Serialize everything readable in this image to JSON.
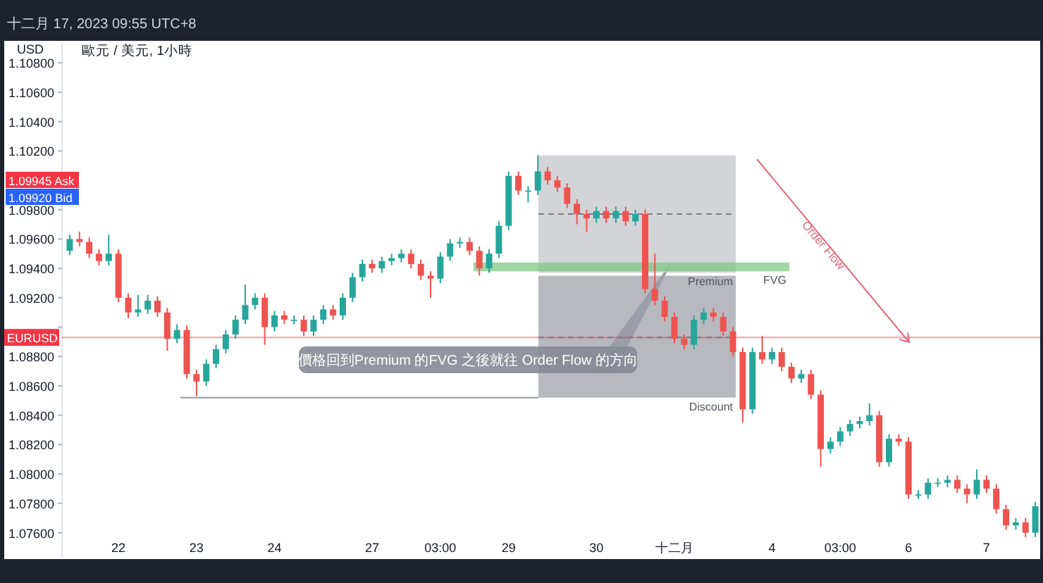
{
  "chart_data": {
    "type": "candlestick",
    "title": "歐元 / 美元, 1小時",
    "subtitle": "十二月 17, 2023 09:55 UTC+8",
    "ylabel": "USD",
    "categories": [
      null,
      null,
      null,
      null,
      null,
      "22",
      null,
      null,
      null,
      null,
      null,
      null,
      null,
      "23",
      null,
      null,
      null,
      null,
      null,
      null,
      null,
      "24",
      null,
      null,
      null,
      null,
      null,
      null,
      null,
      null,
      null,
      "27",
      null,
      null,
      null,
      null,
      null,
      null,
      "03:00",
      null,
      null,
      null,
      null,
      null,
      null,
      "29",
      null,
      null,
      null,
      null,
      null,
      null,
      null,
      null,
      "30",
      null,
      null,
      null,
      null,
      null,
      null,
      null,
      "十二月",
      null,
      null,
      null,
      null,
      null,
      null,
      null,
      null,
      null,
      "4",
      null,
      null,
      null,
      null,
      null,
      null,
      "03:00",
      null,
      null,
      null,
      null,
      null,
      null,
      "6",
      null,
      null,
      null,
      null,
      null,
      null,
      null,
      "7",
      null,
      null,
      null,
      null,
      null
    ],
    "ohlc": [
      [
        1.0952,
        1.0963,
        1.0949,
        1.096
      ],
      [
        1.096,
        1.0965,
        1.0955,
        1.0958
      ],
      [
        1.0958,
        1.0961,
        1.0947,
        1.095
      ],
      [
        1.095,
        1.0953,
        1.0942,
        1.0945
      ],
      [
        1.0945,
        1.0963,
        1.0942,
        1.095
      ],
      [
        1.095,
        1.0953,
        1.0917,
        1.092
      ],
      [
        1.092,
        1.0923,
        1.0906,
        1.091
      ],
      [
        1.091,
        1.0922,
        1.0907,
        1.0912
      ],
      [
        1.0912,
        1.0922,
        1.0909,
        1.0918
      ],
      [
        1.0918,
        1.0921,
        1.0907,
        1.091
      ],
      [
        1.091,
        1.0913,
        1.0884,
        1.0892
      ],
      [
        1.0892,
        1.0902,
        1.0889,
        1.0898
      ],
      [
        1.0898,
        1.0901,
        1.0865,
        1.0868
      ],
      [
        1.0868,
        1.0871,
        1.0853,
        1.0863
      ],
      [
        1.0863,
        1.0878,
        1.086,
        1.0875
      ],
      [
        1.0875,
        1.0888,
        1.0872,
        1.0885
      ],
      [
        1.0885,
        1.0898,
        1.0882,
        1.0895
      ],
      [
        1.0895,
        1.0908,
        1.0892,
        1.0905
      ],
      [
        1.0905,
        1.0929,
        1.0902,
        1.0915
      ],
      [
        1.0915,
        1.0923,
        1.0912,
        1.092
      ],
      [
        1.092,
        1.0923,
        1.0888,
        1.09
      ],
      [
        1.09,
        1.0911,
        1.0897,
        1.0908
      ],
      [
        1.0908,
        1.0911,
        1.0902,
        1.0905
      ],
      [
        1.0905,
        1.0908,
        1.0902,
        1.0905
      ],
      [
        1.0905,
        1.0908,
        1.0894,
        1.0897
      ],
      [
        1.0897,
        1.0908,
        1.0894,
        1.0905
      ],
      [
        1.0905,
        1.0915,
        1.0902,
        1.0912
      ],
      [
        1.0912,
        1.0915,
        1.0905,
        1.0908
      ],
      [
        1.0908,
        1.0923,
        1.0905,
        1.092
      ],
      [
        1.092,
        1.0937,
        1.0917,
        1.0934
      ],
      [
        1.0934,
        1.0946,
        1.0931,
        1.0943
      ],
      [
        1.0943,
        1.0946,
        1.0937,
        1.094
      ],
      [
        1.094,
        1.0948,
        1.0937,
        1.0945
      ],
      [
        1.0945,
        1.095,
        1.0942,
        1.0947
      ],
      [
        1.0947,
        1.0953,
        1.0944,
        1.095
      ],
      [
        1.095,
        1.0953,
        1.094,
        1.0943
      ],
      [
        1.0943,
        1.0946,
        1.0932,
        1.0935
      ],
      [
        1.0935,
        1.0938,
        1.092,
        1.0933
      ],
      [
        1.0933,
        1.0951,
        1.093,
        1.0948
      ],
      [
        1.0948,
        1.096,
        1.0945,
        1.0957
      ],
      [
        1.0957,
        1.0961,
        1.0954,
        1.0958
      ],
      [
        1.0958,
        1.0961,
        1.0949,
        1.0952
      ],
      [
        1.0952,
        1.0955,
        1.0935,
        1.094
      ],
      [
        1.094,
        1.0953,
        1.0937,
        1.095
      ],
      [
        1.095,
        1.0972,
        1.0947,
        1.0969
      ],
      [
        1.0969,
        1.1006,
        1.0966,
        1.1003
      ],
      [
        1.1003,
        1.1006,
        1.099,
        1.0993
      ],
      [
        1.0993,
        1.0996,
        1.0985,
        1.0993
      ],
      [
        1.0993,
        1.1017,
        1.099,
        1.1006
      ],
      [
        1.1006,
        1.1009,
        1.0997,
        1.1
      ],
      [
        1.1,
        1.1003,
        1.0992,
        1.0995
      ],
      [
        1.0995,
        1.0998,
        1.0981,
        1.0984
      ],
      [
        1.0984,
        1.0987,
        1.097,
        1.0977
      ],
      [
        1.0977,
        1.098,
        1.0965,
        1.0974
      ],
      [
        1.0974,
        1.0982,
        1.0971,
        1.0979
      ],
      [
        1.0979,
        1.0982,
        1.0971,
        1.0974
      ],
      [
        1.0974,
        1.0982,
        1.0971,
        1.0979
      ],
      [
        1.0979,
        1.0982,
        1.0969,
        1.0972
      ],
      [
        1.0972,
        1.098,
        1.0969,
        1.0977
      ],
      [
        1.0977,
        1.098,
        1.0923,
        1.0926
      ],
      [
        1.0926,
        1.095,
        1.0915,
        1.0918
      ],
      [
        1.0918,
        1.0921,
        1.0904,
        1.0907
      ],
      [
        1.0907,
        1.091,
        1.0889,
        1.0892
      ],
      [
        1.0892,
        1.0895,
        1.0885,
        1.0888
      ],
      [
        1.0888,
        1.0908,
        1.0885,
        1.0905
      ],
      [
        1.0905,
        1.0913,
        1.0902,
        1.091
      ],
      [
        1.091,
        1.0913,
        1.0904,
        1.0907
      ],
      [
        1.0907,
        1.091,
        1.0894,
        1.0897
      ],
      [
        1.0897,
        1.09,
        1.088,
        1.0883
      ],
      [
        1.0883,
        1.0886,
        1.0835,
        1.0844
      ],
      [
        1.0844,
        1.0886,
        1.0841,
        1.0883
      ],
      [
        1.0883,
        1.0894,
        1.0875,
        1.0878
      ],
      [
        1.0878,
        1.0886,
        1.0875,
        1.0883
      ],
      [
        1.0883,
        1.0886,
        1.087,
        1.0873
      ],
      [
        1.0873,
        1.0876,
        1.0862,
        1.0865
      ],
      [
        1.0865,
        1.0871,
        1.0862,
        1.0868
      ],
      [
        1.0868,
        1.0871,
        1.0851,
        1.0854
      ],
      [
        1.0854,
        1.0857,
        1.0805,
        1.0817
      ],
      [
        1.0817,
        1.0825,
        1.0814,
        1.0822
      ],
      [
        1.0822,
        1.0832,
        1.0819,
        1.0829
      ],
      [
        1.0829,
        1.0837,
        1.0826,
        1.0834
      ],
      [
        1.0834,
        1.0839,
        1.0831,
        1.0836
      ],
      [
        1.0836,
        1.0848,
        1.0833,
        1.084
      ],
      [
        1.084,
        1.0843,
        1.0805,
        1.0808
      ],
      [
        1.0808,
        1.0827,
        1.0805,
        1.0824
      ],
      [
        1.0824,
        1.0827,
        1.0819,
        1.0822
      ],
      [
        1.0822,
        1.0825,
        1.0783,
        1.0786
      ],
      [
        1.0786,
        1.0789,
        1.0783,
        1.0786
      ],
      [
        1.0786,
        1.0797,
        1.0783,
        1.0794
      ],
      [
        1.0794,
        1.0797,
        1.0791,
        1.0794
      ],
      [
        1.0794,
        1.0799,
        1.0791,
        1.0796
      ],
      [
        1.0796,
        1.0799,
        1.0787,
        1.079
      ],
      [
        1.079,
        1.0793,
        1.078,
        1.0786
      ],
      [
        1.0786,
        1.0803,
        1.0783,
        1.0796
      ],
      [
        1.0796,
        1.0799,
        1.0787,
        1.079
      ],
      [
        1.079,
        1.0793,
        1.0773,
        1.0776
      ],
      [
        1.0776,
        1.0779,
        1.0762,
        1.0765
      ],
      [
        1.0765,
        1.077,
        1.0762,
        1.0767
      ],
      [
        1.0767,
        1.077,
        1.0757,
        1.076
      ],
      [
        1.076,
        1.0781,
        1.0757,
        1.0778
      ]
    ],
    "ylim": [
      1.0743,
      1.1094
    ],
    "yticks": [
      {
        "value": 1.076,
        "label": "1.07600"
      },
      {
        "value": 1.078,
        "label": "1.07800"
      },
      {
        "value": 1.08,
        "label": "1.08000"
      },
      {
        "value": 1.082,
        "label": "1.08200"
      },
      {
        "value": 1.084,
        "label": "1.08400"
      },
      {
        "value": 1.086,
        "label": "1.08600"
      },
      {
        "value": 1.088,
        "label": "1.08800"
      },
      {
        "value": 1.09,
        "label": null
      },
      {
        "value": 1.092,
        "label": "1.09200"
      },
      {
        "value": 1.094,
        "label": "1.09400"
      },
      {
        "value": 1.096,
        "label": "1.09600"
      },
      {
        "value": 1.098,
        "label": "1.09800"
      },
      {
        "value": 1.1,
        "label": null
      },
      {
        "value": 1.102,
        "label": "1.10200"
      },
      {
        "value": 1.104,
        "label": "1.10400"
      },
      {
        "value": 1.106,
        "label": "1.10600"
      },
      {
        "value": 1.108,
        "label": "1.10800"
      }
    ],
    "bands": [
      {
        "axis": "y",
        "from": 1.0937,
        "to": 1.1017,
        "label": "Premium",
        "color": "#c3c5cb"
      },
      {
        "axis": "y",
        "from": 1.0852,
        "to": 1.0935,
        "label": "Discount",
        "color": "#9fa2aa"
      },
      {
        "axis": "y",
        "from": 1.0938,
        "to": 1.0944,
        "label": "FVG",
        "color": "#81c784"
      }
    ],
    "ref_lines": [
      {
        "axis": "y",
        "value": 1.0893,
        "label": "EURUSD",
        "color": "#f23645"
      },
      {
        "axis": "y",
        "value": 1.0852,
        "color": "#9598a1"
      },
      {
        "axis": "y",
        "value": 1.0977,
        "color": "#787b86",
        "line_style": "dashed"
      },
      {
        "axis": "y",
        "value": 1.0893,
        "color": "#787b86",
        "line_style": "dashed"
      }
    ],
    "annotations": [
      "價格回到Premium 的FVG 之後就往 Order Flow 的方向",
      "Order Flow",
      "1.09945 Ask",
      "1.09920 Bid"
    ]
  }
}
